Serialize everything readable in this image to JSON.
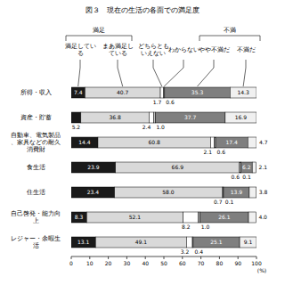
{
  "chart_data": {
    "type": "bar",
    "orientation": "horizontal",
    "stacked": true,
    "data_labels": true,
    "grid": false,
    "title": "図３　現在の生活の各面での満足度",
    "xlabel": "(%)",
    "xlim": [
      0,
      100
    ],
    "xticks": [
      0,
      10,
      20,
      30,
      40,
      50,
      60,
      70,
      80,
      90,
      100
    ],
    "categories": [
      "所得・収入",
      "資産・貯蓄",
      "自動車、電気製品、家具などの耐久消費財",
      "食生活",
      "住生活",
      "自己啓発・能力向上",
      "レジャー・余暇生活"
    ],
    "annotations": [
      {
        "text": "満足",
        "series": [
          0,
          1
        ]
      },
      {
        "text": "不満",
        "series": [
          4,
          5
        ]
      }
    ],
    "series": [
      {
        "name": "満足している",
        "color": "#1a1a1a",
        "values": [
          7.4,
          5.2,
          14.4,
          23.9,
          23.4,
          8.3,
          13.1
        ],
        "value_labels": [
          "7.4",
          "5.2",
          "14.4",
          "23.9",
          "23.4",
          "8.3",
          "13.1"
        ]
      },
      {
        "name": "まあ満足している",
        "color": "#d9d9d9",
        "values": [
          40.7,
          36.8,
          60.8,
          66.9,
          58.0,
          52.1,
          49.1
        ],
        "value_labels": [
          "40.7",
          "36.8",
          "60.8",
          "66.9",
          "58.0",
          "52.1",
          "49.1"
        ]
      },
      {
        "name": "どちらともいえない",
        "color": "#ffffff",
        "values": [
          1.7,
          2.4,
          2.1,
          0.6,
          0.7,
          8.2,
          3.2
        ],
        "value_labels": [
          "1.7",
          "2.4",
          "2.1",
          "0.6",
          "0.7",
          "8.2",
          "3.2"
        ]
      },
      {
        "name": "わからない",
        "color": "#bfbfbf",
        "values": [
          0.6,
          1.0,
          0.6,
          0.1,
          0.1,
          1.0,
          0.4
        ],
        "value_labels": [
          "0.6",
          "1.0",
          "0.6",
          "0.1",
          "0.1",
          "1.0",
          "0.4"
        ]
      },
      {
        "name": "やや不満だ",
        "color": "#7f7f7f",
        "values": [
          35.3,
          37.7,
          17.4,
          6.2,
          13.9,
          26.1,
          25.1
        ],
        "value_labels": [
          "35.3",
          "37.7",
          "17.4",
          "6.2",
          "13.9",
          "26.1",
          "25.1"
        ]
      },
      {
        "name": "不満だ",
        "color": "#f0f0f0",
        "values": [
          14.3,
          16.9,
          4.7,
          2.1,
          3.8,
          4.0,
          9.1
        ],
        "value_labels": [
          "14.3",
          "16.9",
          "4.7",
          "2.1",
          "3.8",
          "4.0",
          "9.1"
        ]
      }
    ]
  }
}
